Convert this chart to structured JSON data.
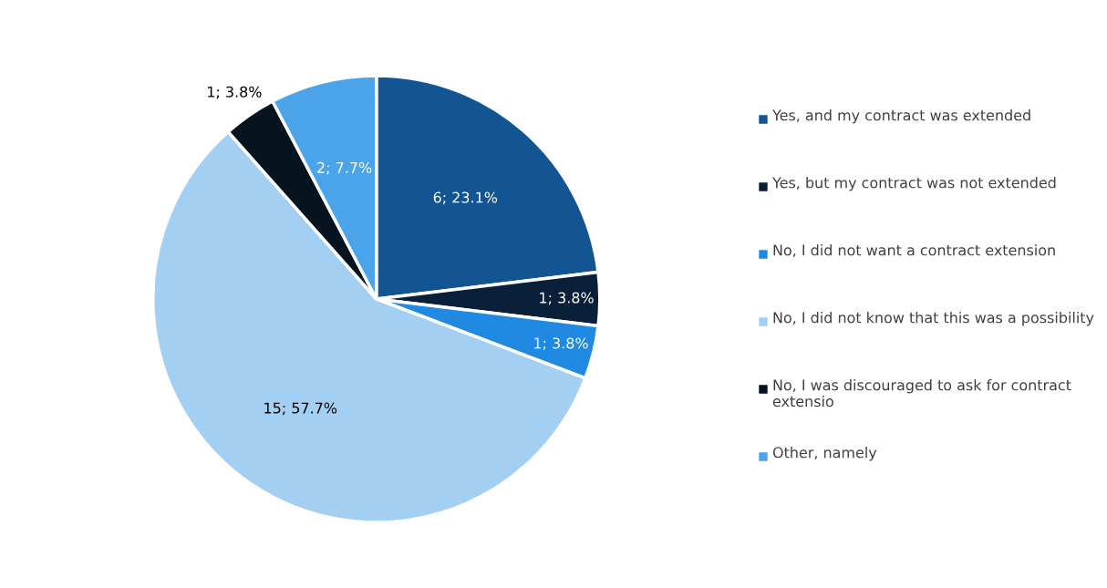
{
  "chart_data": {
    "type": "pie",
    "categories": [
      "Yes, and my contract was extended",
      "Yes, but my contract was not extended",
      "No, I did not want a contract extension",
      "No, I did not know that this was a possibility",
      "No, I was discouraged to ask for contract extensio",
      "Other, namely"
    ],
    "values": [
      6,
      1,
      1,
      15,
      1,
      2
    ],
    "value_labels": [
      "6; 23.1%",
      "1; 3.8%",
      "1; 3.8%",
      "15; 57.7%",
      "1; 3.8%",
      "2; 7.7%"
    ],
    "colors": [
      "#135592",
      "#0a2038",
      "#208ae3",
      "#a3cff3",
      "#05141f",
      "#4ba3e9"
    ],
    "legend": "right"
  }
}
